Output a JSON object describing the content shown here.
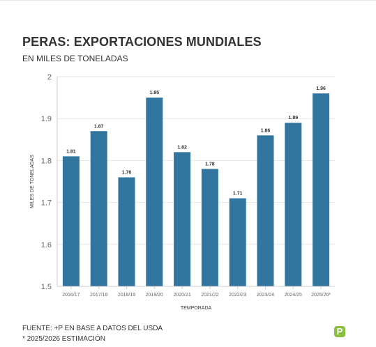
{
  "header": {
    "title": "PERAS: EXPORTACIONES MUNDIALES",
    "subtitle": "EN MILES DE TONELADAS"
  },
  "chart_data": {
    "type": "bar",
    "categories": [
      "2016/17",
      "2017/18",
      "2018/19",
      "2019/20",
      "2020/21",
      "2021/22",
      "2022/23",
      "2023/24",
      "2024/25",
      "2025/26*"
    ],
    "values": [
      1.81,
      1.87,
      1.76,
      1.95,
      1.82,
      1.78,
      1.71,
      1.86,
      1.89,
      1.96
    ],
    "xlabel": "TEMPORADA",
    "ylabel": "MILES DE TONELADAS",
    "ylim": [
      1.5,
      2
    ],
    "yticks": [
      "1.5",
      "1.6",
      "1.7",
      "1.8",
      "1.9",
      "2"
    ],
    "grid": true,
    "bar_color": "#31759e"
  },
  "footer": {
    "source": "FUENTE: +P EN BASE A DATOS DEL USDA",
    "note": "* 2025/2026 ESTIMACIÓN"
  },
  "logo": {
    "brand_color": "#8bbf3f",
    "glyph": "P"
  }
}
